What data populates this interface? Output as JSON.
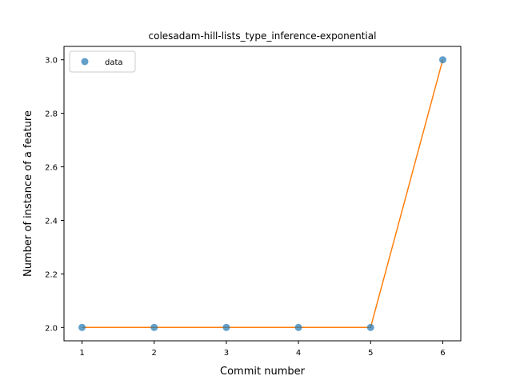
{
  "chart_data": {
    "type": "line",
    "title": "colesadam-hill-lists_type_inference-exponential",
    "xlabel": "Commit number",
    "ylabel": "Number of instance of a feature",
    "xlim": [
      0.75,
      6.25
    ],
    "ylim": [
      1.95,
      3.05
    ],
    "x_ticks": [
      1,
      2,
      3,
      4,
      5,
      6
    ],
    "y_ticks": [
      2.0,
      2.2,
      2.4,
      2.6,
      2.8,
      3.0
    ],
    "x_tick_labels": [
      "1",
      "2",
      "3",
      "4",
      "5",
      "6"
    ],
    "y_tick_labels": [
      "2.0",
      "2.2",
      "2.4",
      "2.6",
      "2.8",
      "3.0"
    ],
    "grid": false,
    "legend_position": "top-left",
    "series": [
      {
        "name": "data",
        "style": "markers",
        "color": "#1f77b4",
        "x": [
          1,
          2,
          3,
          4,
          5,
          6
        ],
        "y": [
          2.0,
          2.0,
          2.0,
          2.0,
          2.0,
          3.0
        ]
      },
      {
        "style": "line",
        "color": "#ff7f0e",
        "x": [
          1,
          2,
          3,
          4,
          5,
          6
        ],
        "y": [
          2.0,
          2.0,
          2.0,
          2.0,
          2.0,
          3.0
        ]
      }
    ]
  }
}
